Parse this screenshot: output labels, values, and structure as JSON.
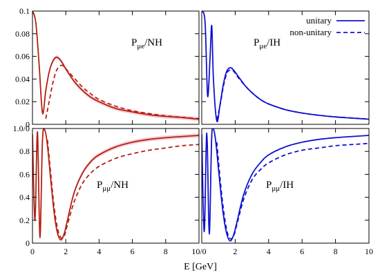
{
  "chart_data": [
    {
      "type": "line",
      "panel_label": {
        "base": "P",
        "sub": "μe",
        "suffix": "/NH"
      },
      "xlim": [
        0,
        10
      ],
      "ylim": [
        0,
        0.1
      ],
      "yticks": [
        0,
        0.02,
        0.04,
        0.06,
        0.08
      ],
      "ytick_labels": [
        "0",
        "0.02",
        "0.04",
        "0.06",
        "0.08",
        "0.1"
      ],
      "band_color": "#f7c0cc",
      "series": [
        {
          "style": "solid",
          "color": "#b22010",
          "x": [
            0.0,
            0.2,
            0.4,
            0.6,
            0.8,
            1.0,
            1.2,
            1.4,
            1.6,
            1.8,
            2.0,
            2.5,
            3.0,
            3.5,
            4.0,
            5.0,
            6.0,
            7.0,
            8.0,
            9.0,
            10.0
          ],
          "y": [
            0.1,
            0.09,
            0.053,
            0.01,
            0.03,
            0.046,
            0.055,
            0.059,
            0.058,
            0.054,
            0.049,
            0.038,
            0.03,
            0.024,
            0.02,
            0.014,
            0.011,
            0.0085,
            0.007,
            0.006,
            0.0045
          ]
        },
        {
          "style": "dashed",
          "color": "#b22010",
          "x": [
            0.8,
            1.0,
            1.2,
            1.4,
            1.6,
            1.8,
            2.0,
            2.5,
            3.0,
            3.5,
            4.0,
            5.0,
            6.0,
            7.0,
            8.0,
            9.0,
            10.0
          ],
          "y": [
            0.005,
            0.02,
            0.035,
            0.046,
            0.051,
            0.052,
            0.049,
            0.041,
            0.033,
            0.027,
            0.022,
            0.016,
            0.012,
            0.0095,
            0.0075,
            0.0062,
            0.005
          ]
        }
      ]
    },
    {
      "type": "line",
      "panel_label": {
        "base": "P",
        "sub": "μe",
        "suffix": "/IH"
      },
      "xlim": [
        0,
        10
      ],
      "ylim": [
        0,
        0.1
      ],
      "series": [
        {
          "name": "unitary",
          "style": "solid",
          "color": "#1010d0",
          "x": [
            0.0,
            0.2,
            0.35,
            0.5,
            0.6,
            0.7,
            0.9,
            1.1,
            1.3,
            1.5,
            1.7,
            1.9,
            2.2,
            2.6,
            3.0,
            3.5,
            4.0,
            5.0,
            6.0,
            7.0,
            8.0,
            9.0,
            10.0
          ],
          "y": [
            0.1,
            0.09,
            0.025,
            0.06,
            0.087,
            0.04,
            0.003,
            0.018,
            0.036,
            0.047,
            0.05,
            0.048,
            0.042,
            0.034,
            0.028,
            0.022,
            0.018,
            0.013,
            0.01,
            0.008,
            0.0065,
            0.0055,
            0.0045
          ]
        },
        {
          "name": "non-unitary",
          "style": "dashed",
          "color": "#1010d0",
          "x": [
            0.9,
            1.1,
            1.3,
            1.5,
            1.7,
            1.9,
            2.2,
            2.6,
            3.0,
            3.5,
            4.0,
            5.0,
            6.0,
            7.0,
            8.0,
            9.0,
            10.0
          ],
          "y": [
            0.004,
            0.017,
            0.034,
            0.045,
            0.048,
            0.047,
            0.041,
            0.034,
            0.028,
            0.022,
            0.018,
            0.013,
            0.01,
            0.008,
            0.0066,
            0.0056,
            0.0046
          ]
        }
      ]
    },
    {
      "type": "line",
      "panel_label": {
        "base": "P",
        "sub": "μμ",
        "suffix": "/NH"
      },
      "xlim": [
        0,
        10
      ],
      "ylim": [
        0,
        1.0
      ],
      "yticks": [
        0,
        0.2,
        0.4,
        0.6,
        0.8
      ],
      "ytick_labels": [
        "0",
        "0.2",
        "0.4",
        "0.6",
        "0.8",
        "1.0/0"
      ],
      "xticks": [
        0,
        2,
        4,
        6,
        8
      ],
      "xtick_labels": [
        "0",
        "2",
        "4",
        "6",
        "8",
        "10/0"
      ],
      "band_color": "#f7c0cc",
      "series": [
        {
          "style": "solid",
          "color": "#b22010",
          "x": [
            0.0,
            0.15,
            0.3,
            0.45,
            0.6,
            0.75,
            0.9,
            1.1,
            1.3,
            1.5,
            1.7,
            1.9,
            2.1,
            2.5,
            3.0,
            3.5,
            4.0,
            5.0,
            6.0,
            7.0,
            8.0,
            9.0,
            10.0
          ],
          "y": [
            0.95,
            0.2,
            0.97,
            0.05,
            0.9,
            0.98,
            0.85,
            0.55,
            0.27,
            0.09,
            0.03,
            0.08,
            0.2,
            0.44,
            0.61,
            0.71,
            0.77,
            0.84,
            0.88,
            0.905,
            0.92,
            0.93,
            0.94
          ]
        },
        {
          "style": "dashed",
          "color": "#b22010",
          "x": [
            0.9,
            1.1,
            1.3,
            1.5,
            1.7,
            1.9,
            2.1,
            2.5,
            3.0,
            3.5,
            4.0,
            5.0,
            6.0,
            7.0,
            8.0,
            9.0,
            10.0
          ],
          "y": [
            0.9,
            0.6,
            0.32,
            0.13,
            0.05,
            0.06,
            0.16,
            0.36,
            0.52,
            0.61,
            0.67,
            0.74,
            0.78,
            0.81,
            0.83,
            0.85,
            0.86
          ]
        }
      ]
    },
    {
      "type": "line",
      "panel_label": {
        "base": "P",
        "sub": "μμ",
        "suffix": "/IH"
      },
      "xlim": [
        0,
        10
      ],
      "ylim": [
        0,
        1.0
      ],
      "xticks": [
        2,
        4,
        6,
        8,
        10
      ],
      "xtick_labels": [
        "2",
        "4",
        "6",
        "8",
        "10"
      ],
      "series": [
        {
          "style": "solid",
          "color": "#1010d0",
          "x": [
            0.0,
            0.15,
            0.3,
            0.45,
            0.6,
            0.75,
            0.9,
            1.1,
            1.3,
            1.5,
            1.7,
            1.9,
            2.1,
            2.5,
            3.0,
            3.5,
            4.0,
            5.0,
            6.0,
            7.0,
            8.0,
            9.0,
            10.0
          ],
          "y": [
            0.95,
            0.1,
            0.96,
            0.08,
            0.94,
            0.97,
            0.8,
            0.5,
            0.24,
            0.08,
            0.02,
            0.07,
            0.18,
            0.42,
            0.6,
            0.7,
            0.77,
            0.84,
            0.88,
            0.905,
            0.92,
            0.93,
            0.94
          ]
        },
        {
          "style": "dashed",
          "color": "#1010d0",
          "x": [
            0.9,
            1.1,
            1.3,
            1.5,
            1.7,
            1.9,
            2.1,
            2.5,
            3.0,
            3.5,
            4.0,
            5.0,
            6.0,
            7.0,
            8.0,
            9.0,
            10.0
          ],
          "y": [
            0.88,
            0.56,
            0.29,
            0.11,
            0.04,
            0.06,
            0.16,
            0.38,
            0.55,
            0.64,
            0.7,
            0.77,
            0.81,
            0.83,
            0.85,
            0.86,
            0.87
          ]
        }
      ]
    }
  ],
  "x_axis_title": "E [GeV]",
  "legend": [
    {
      "label": "unitary",
      "style": "solid"
    },
    {
      "label": "non-unitary",
      "style": "dashed"
    }
  ]
}
